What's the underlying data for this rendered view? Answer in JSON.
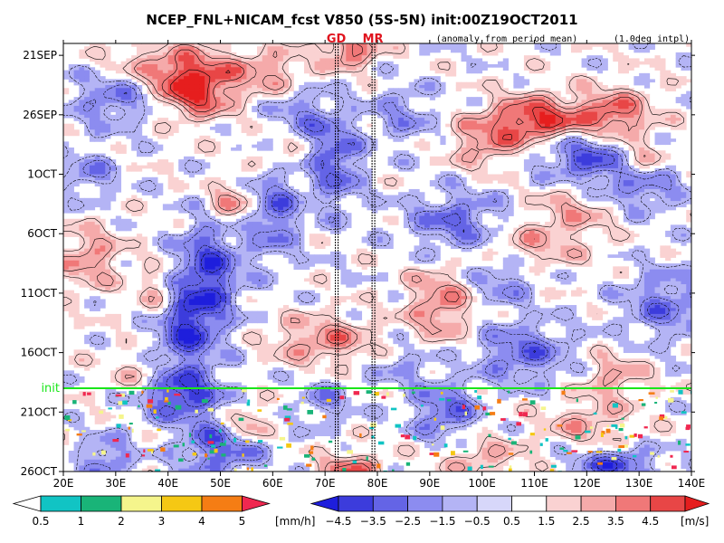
{
  "chart_data": {
    "type": "heatmap",
    "title": "NCEP_FNL+NICAM_fcst V850 (5S-5N) init:00Z19OCT2011",
    "subtitle_left": "(anomaly from period mean)",
    "subtitle_right": "(1.0deg intpl)",
    "x_ticks": [
      "20E",
      "30E",
      "40E",
      "50E",
      "60E",
      "70E",
      "80E",
      "90E",
      "100E",
      "110E",
      "120E",
      "130E",
      "140E"
    ],
    "x_values": [
      20,
      30,
      40,
      50,
      60,
      70,
      80,
      90,
      100,
      110,
      120,
      130,
      140
    ],
    "xlim": [
      20,
      140
    ],
    "y_ticks": [
      "21SEP",
      "26SEP",
      "1OCT",
      "6OCT",
      "11OCT",
      "16OCT",
      "21OCT",
      "26OCT"
    ],
    "y_days": [
      0,
      5,
      10,
      15,
      20,
      25,
      30,
      35
    ],
    "ylim_days": [
      35,
      -1
    ],
    "markers": [
      {
        "label": "GD",
        "lon": 72.5
      },
      {
        "label": "MR",
        "lon": 79.5
      }
    ],
    "init_line": {
      "label": "init",
      "day": 28.0
    },
    "colorbar_precip": {
      "unit": "[mm/h]",
      "labels": [
        "0.5",
        "1",
        "2",
        "3",
        "4",
        "5"
      ],
      "colors": [
        "#ffffff",
        "#11c4c4",
        "#19b478",
        "#f5f58c",
        "#f5c814",
        "#f57d14",
        "#f02850"
      ]
    },
    "colorbar_wind": {
      "unit": "[m/s]",
      "labels": [
        "−4.5",
        "−3.5",
        "−2.5",
        "−1.5",
        "−0.5",
        "0.5",
        "1.5",
        "2.5",
        "3.5",
        "4.5"
      ],
      "colors": [
        "#1e1edc",
        "#3c3cdc",
        "#6464e6",
        "#8c8cf0",
        "#b4b4f5",
        "#d7d7fa",
        "#ffffff",
        "#fad2d2",
        "#f5aaaa",
        "#f07878",
        "#e84646",
        "#e61e1e"
      ]
    }
  }
}
